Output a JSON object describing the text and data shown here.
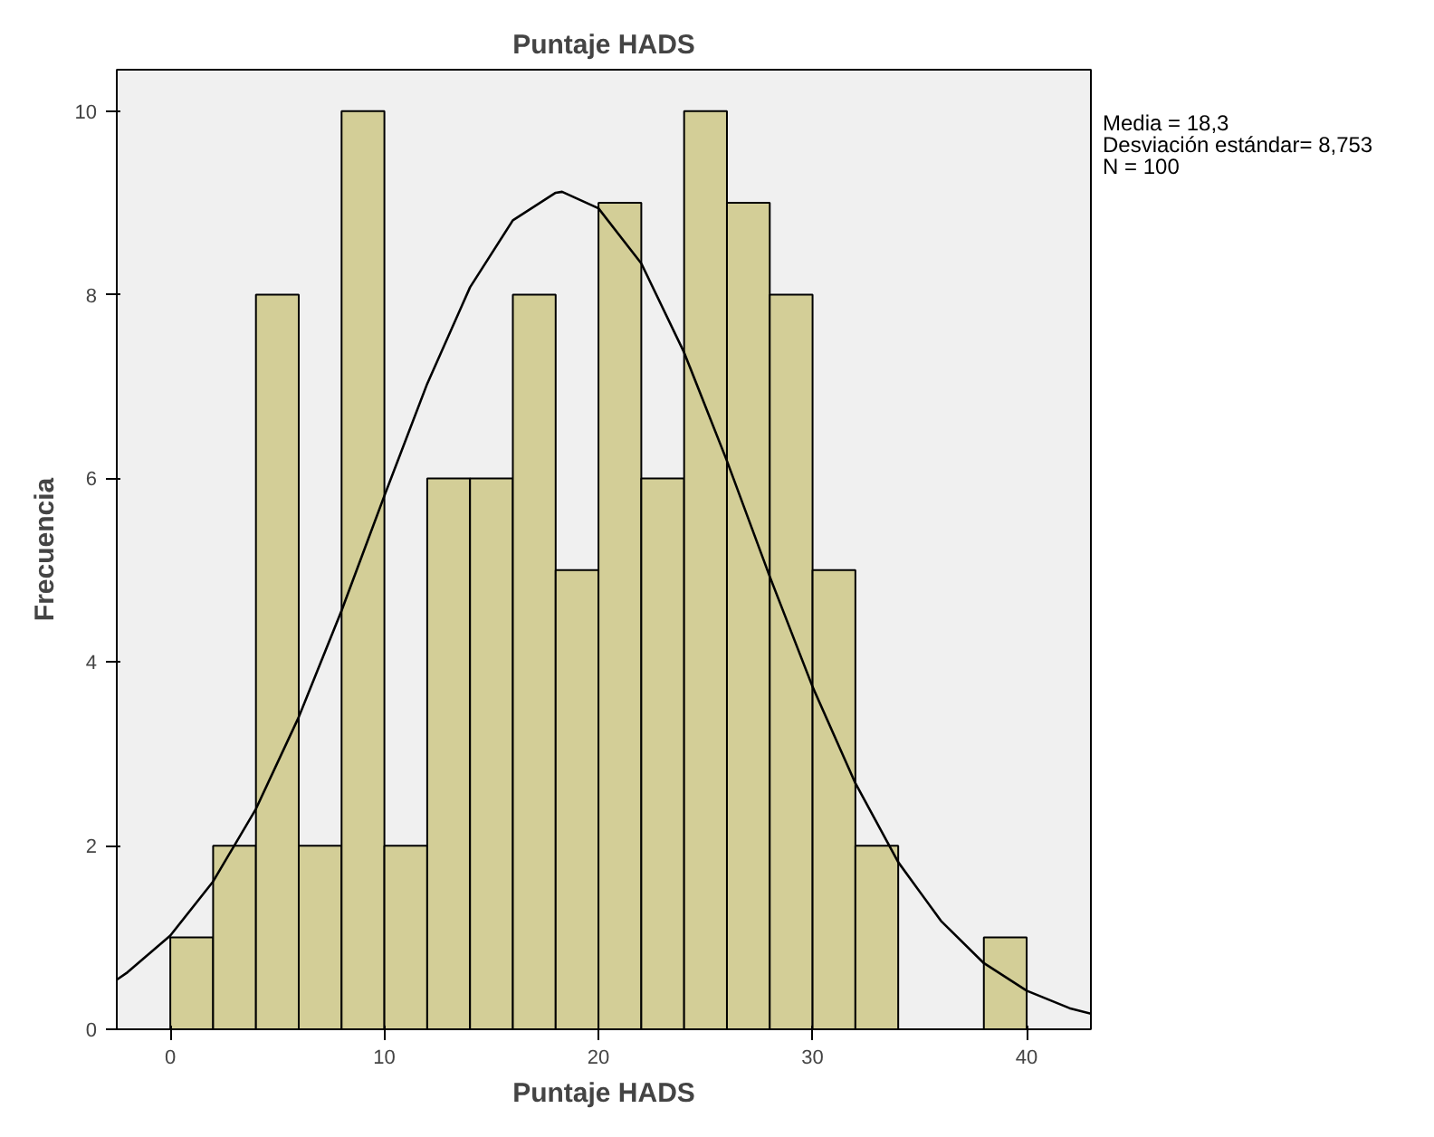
{
  "chart_data": {
    "type": "histogram",
    "title": "Puntaje HADS",
    "xlabel": "Puntaje HADS",
    "ylabel": "Frecuencia",
    "bins": [
      0,
      2,
      4,
      6,
      8,
      10,
      12,
      14,
      16,
      18,
      20,
      22,
      24,
      26,
      28,
      30,
      32,
      34,
      36,
      38,
      40
    ],
    "series": [
      {
        "color": "#d3ce97",
        "values": [
          1,
          2,
          8,
          2,
          10,
          2,
          6,
          6,
          8,
          5,
          9,
          6,
          10,
          9,
          8,
          5,
          2,
          0,
          0,
          1
        ]
      },
      {
        "type": "line",
        "color": "#000000",
        "x": [
          -2.5,
          -2,
          0,
          2,
          4,
          6,
          8,
          10,
          12,
          14,
          16,
          18,
          18.3,
          20,
          22,
          24,
          26,
          28,
          30,
          32,
          34,
          36,
          38,
          40,
          42,
          43
        ],
        "values": [
          0.54,
          0.62,
          1.02,
          1.61,
          2.4,
          3.4,
          4.56,
          5.81,
          7.03,
          8.08,
          8.81,
          9.11,
          9.12,
          8.94,
          8.34,
          7.37,
          6.19,
          4.93,
          3.73,
          2.68,
          1.82,
          1.18,
          0.72,
          0.42,
          0.23,
          0.17
        ]
      }
    ],
    "xlim": [
      -2.5,
      43
    ],
    "ylim": [
      0,
      10.45
    ],
    "xticks": [
      0,
      10,
      20,
      30,
      40
    ],
    "yticks": [
      0,
      2,
      4,
      6,
      8,
      10
    ],
    "grid": false,
    "annotations": [
      "Media = 18,3",
      "Desviación estándar= 8,753",
      "N = 100"
    ]
  }
}
